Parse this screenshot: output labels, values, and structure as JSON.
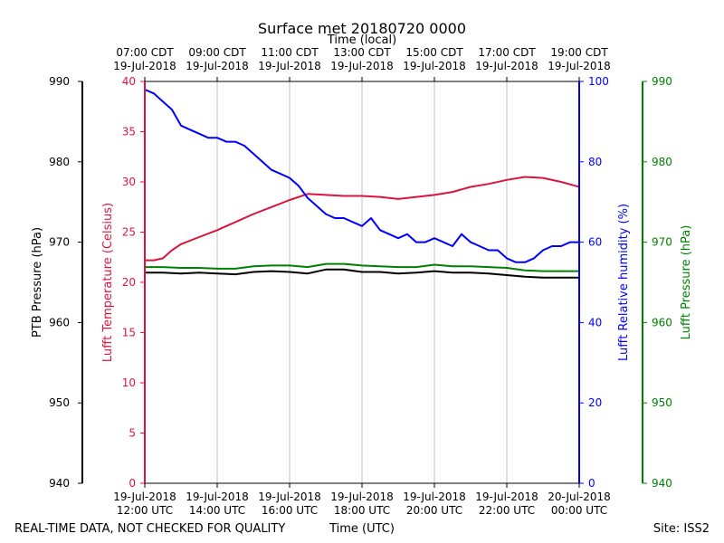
{
  "chart_data": {
    "type": "line",
    "title": "Surface met 20180720 0000",
    "top_axis_title": "Time (local)",
    "xlabel": "Time (UTC)",
    "footer_left": "REAL-TIME DATA, NOT CHECKED FOR QUALITY",
    "footer_right": "Site: ISS2",
    "x_utc_hours_range": [
      12,
      24
    ],
    "x_ticks_bottom": [
      {
        "hour": 12,
        "line1": "19-Jul-2018",
        "line2": "12:00 UTC"
      },
      {
        "hour": 14,
        "line1": "19-Jul-2018",
        "line2": "14:00 UTC"
      },
      {
        "hour": 16,
        "line1": "19-Jul-2018",
        "line2": "16:00 UTC"
      },
      {
        "hour": 18,
        "line1": "19-Jul-2018",
        "line2": "18:00 UTC"
      },
      {
        "hour": 20,
        "line1": "19-Jul-2018",
        "line2": "20:00 UTC"
      },
      {
        "hour": 22,
        "line1": "19-Jul-2018",
        "line2": "22:00 UTC"
      },
      {
        "hour": 24,
        "line1": "20-Jul-2018",
        "line2": "00:00 UTC"
      }
    ],
    "x_ticks_top": [
      {
        "hour": 12,
        "line1": "07:00 CDT",
        "line2": "19-Jul-2018"
      },
      {
        "hour": 14,
        "line1": "09:00 CDT",
        "line2": "19-Jul-2018"
      },
      {
        "hour": 16,
        "line1": "11:00 CDT",
        "line2": "19-Jul-2018"
      },
      {
        "hour": 18,
        "line1": "13:00 CDT",
        "line2": "19-Jul-2018"
      },
      {
        "hour": 20,
        "line1": "15:00 CDT",
        "line2": "19-Jul-2018"
      },
      {
        "hour": 22,
        "line1": "17:00 CDT",
        "line2": "19-Jul-2018"
      },
      {
        "hour": 24,
        "line1": "19:00 CDT",
        "line2": "19-Jul-2018"
      }
    ],
    "axes": {
      "ptb": {
        "label": "PTB Pressure (hPa)",
        "range": [
          940,
          990
        ],
        "ticks": [
          940,
          950,
          960,
          970,
          980,
          990
        ],
        "color": "#000000"
      },
      "temp": {
        "label": "Lufft Temperature (Celsius)",
        "range": [
          0,
          40
        ],
        "ticks": [
          0,
          5,
          10,
          15,
          20,
          25,
          30,
          35,
          40
        ],
        "color": "#dc143c"
      },
      "rh": {
        "label": "Lufft Relative humidity (%)",
        "range": [
          0,
          100
        ],
        "ticks": [
          0,
          20,
          40,
          60,
          80,
          100
        ],
        "color": "#0000ff"
      },
      "lufft_p": {
        "label": "Lufft Pressure (hPa)",
        "range": [
          940,
          990
        ],
        "ticks": [
          940,
          950,
          960,
          970,
          980,
          990
        ],
        "color": "#008000"
      }
    },
    "series": [
      {
        "name": "PTB Pressure",
        "axis": "ptb",
        "color": "#000000",
        "x": [
          12,
          12.5,
          13,
          13.5,
          14,
          14.5,
          15,
          15.5,
          16,
          16.5,
          17,
          17.5,
          18,
          18.5,
          19,
          19.5,
          20,
          20.5,
          21,
          21.5,
          22,
          22.5,
          23,
          23.5,
          24
        ],
        "values": [
          966.2,
          966.2,
          966.1,
          966.2,
          966.1,
          966.0,
          966.3,
          966.4,
          966.3,
          966.1,
          966.6,
          966.6,
          966.3,
          966.3,
          966.1,
          966.2,
          966.4,
          966.2,
          966.2,
          966.1,
          965.9,
          965.7,
          965.6,
          965.6,
          965.6
        ]
      },
      {
        "name": "Lufft Pressure",
        "axis": "lufft_p",
        "color": "#008000",
        "x": [
          12,
          12.5,
          13,
          13.5,
          14,
          14.5,
          15,
          15.5,
          16,
          16.5,
          17,
          17.5,
          18,
          18.5,
          19,
          19.5,
          20,
          20.5,
          21,
          21.5,
          22,
          22.5,
          23,
          23.5,
          24
        ],
        "values": [
          966.9,
          966.9,
          966.8,
          966.8,
          966.7,
          966.7,
          967.0,
          967.1,
          967.1,
          966.9,
          967.3,
          967.3,
          967.1,
          967.0,
          966.9,
          966.9,
          967.2,
          967.0,
          967.0,
          966.9,
          966.8,
          966.5,
          966.4,
          966.4,
          966.4
        ]
      },
      {
        "name": "Lufft Temperature",
        "axis": "temp",
        "color": "#dc143c",
        "x": [
          12,
          12.25,
          12.5,
          12.75,
          13,
          13.5,
          14,
          14.5,
          15,
          15.5,
          16,
          16.5,
          17,
          17.5,
          18,
          18.5,
          19,
          19.5,
          20,
          20.5,
          21,
          21.5,
          22,
          22.5,
          23,
          23.5,
          24
        ],
        "values": [
          22.2,
          22.2,
          22.4,
          23.2,
          23.8,
          24.5,
          25.2,
          26.0,
          26.8,
          27.5,
          28.2,
          28.8,
          28.7,
          28.6,
          28.6,
          28.5,
          28.3,
          28.5,
          28.7,
          29.0,
          29.5,
          29.8,
          30.2,
          30.5,
          30.4,
          30.0,
          29.5
        ]
      },
      {
        "name": "Lufft Relative humidity",
        "axis": "rh",
        "color": "#0000ff",
        "x": [
          12,
          12.25,
          12.5,
          12.75,
          13,
          13.25,
          13.5,
          13.75,
          14,
          14.25,
          14.5,
          14.75,
          15,
          15.25,
          15.5,
          15.75,
          16,
          16.25,
          16.5,
          16.75,
          17,
          17.25,
          17.5,
          17.75,
          18,
          18.25,
          18.5,
          18.75,
          19,
          19.25,
          19.5,
          19.75,
          20,
          20.25,
          20.5,
          20.75,
          21,
          21.25,
          21.5,
          21.75,
          22,
          22.25,
          22.5,
          22.75,
          23,
          23.25,
          23.5,
          23.75,
          24
        ],
        "values": [
          98,
          97,
          95,
          93,
          89,
          88,
          87,
          86,
          86,
          85,
          85,
          84,
          82,
          80,
          78,
          77,
          76,
          74,
          71,
          69,
          67,
          66,
          66,
          65,
          64,
          66,
          63,
          62,
          61,
          62,
          60,
          60,
          61,
          60,
          59,
          62,
          60,
          59,
          58,
          58,
          56,
          55,
          55,
          56,
          58,
          59,
          59,
          60,
          60
        ]
      }
    ]
  }
}
